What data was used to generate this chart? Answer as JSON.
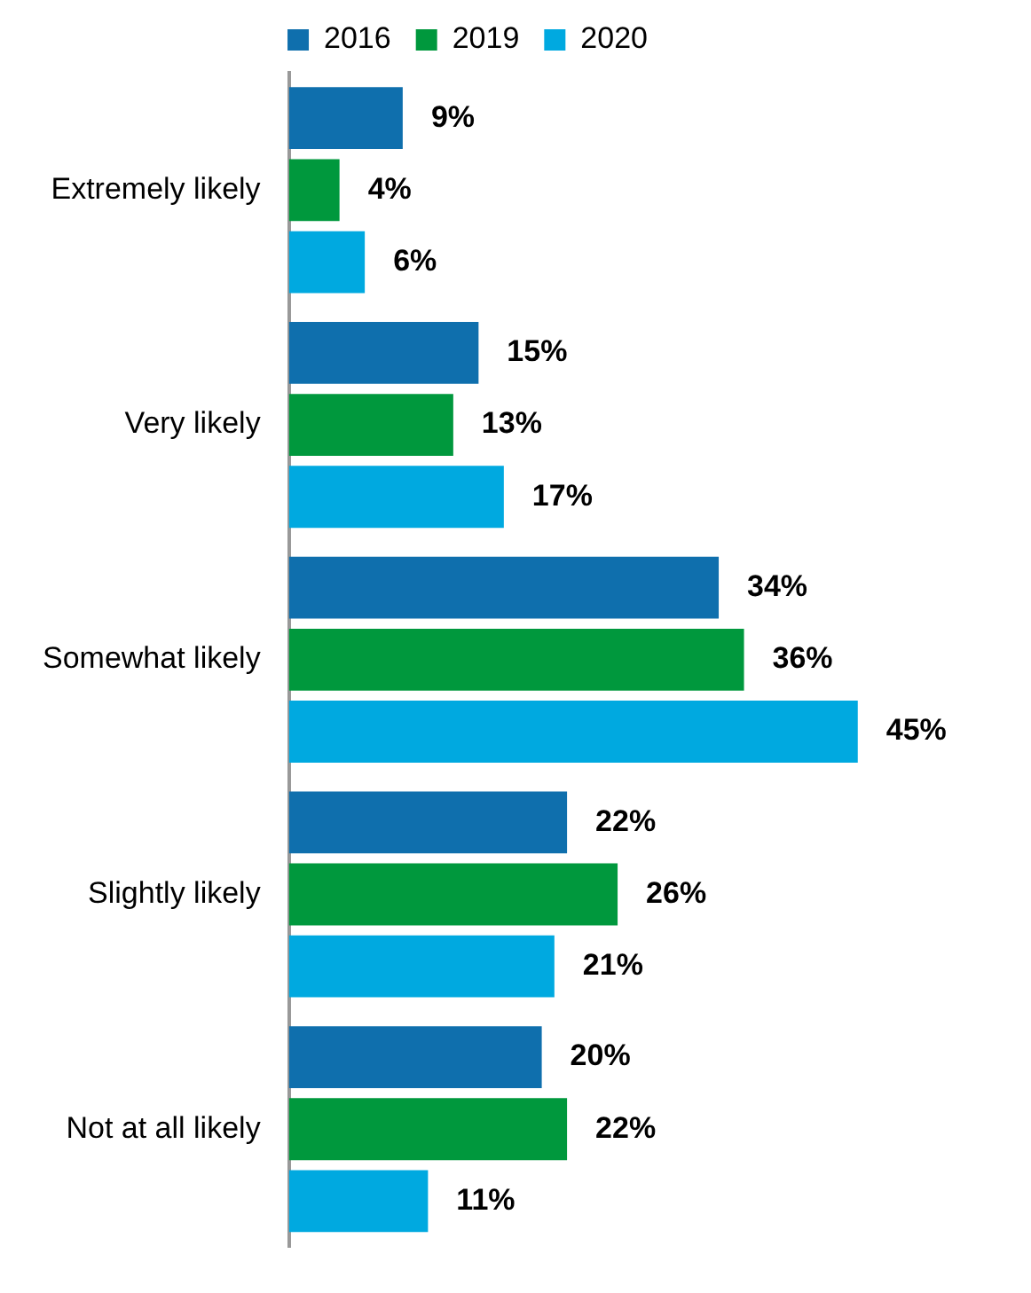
{
  "chart_data": {
    "type": "bar",
    "orientation": "horizontal",
    "categories": [
      "Extremely likely",
      "Very likely",
      "Somewhat likely",
      "Slightly likely",
      "Not at all likely"
    ],
    "series": [
      {
        "name": "2016",
        "color": "#0f6fad",
        "values": [
          9,
          15,
          34,
          22,
          20
        ],
        "value_labels": [
          "9%",
          "15%",
          "34%",
          "22%",
          "20%"
        ]
      },
      {
        "name": "2019",
        "color": "#00983d",
        "values": [
          4,
          13,
          36,
          26,
          22
        ],
        "value_labels": [
          "4%",
          "13%",
          "36%",
          "26%",
          "22%"
        ]
      },
      {
        "name": "2020",
        "color": "#00a9e0",
        "values": [
          6,
          17,
          45,
          21,
          11
        ],
        "value_labels": [
          "6%",
          "17%",
          "45%",
          "21%",
          "11%"
        ]
      }
    ],
    "legend": "top"
  }
}
